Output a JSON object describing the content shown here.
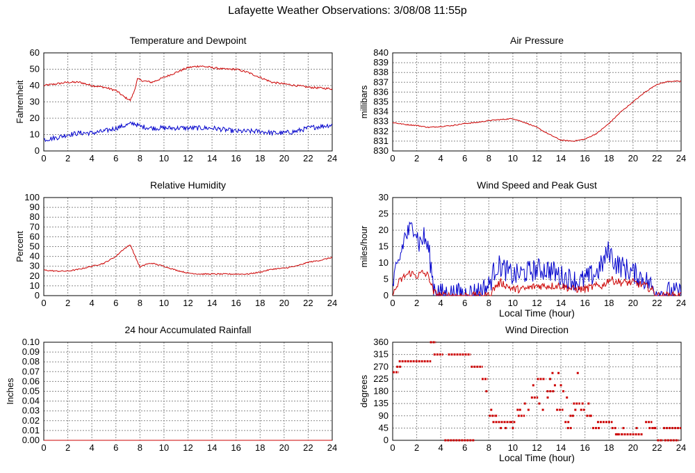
{
  "title": "Lafayette Weather Observations: 3/08/08 11:55p",
  "colors": {
    "red": "#cc0000",
    "blue": "#0000cc",
    "grid": "#888888",
    "axis": "#000000"
  },
  "chart_data": [
    {
      "type": "line",
      "title": "Temperature and Dewpoint",
      "ylabel": "Fahrenheit",
      "xlabel": "",
      "xlim": [
        0,
        24
      ],
      "ylim": [
        0,
        60
      ],
      "xticks": [
        0,
        2,
        4,
        6,
        8,
        10,
        12,
        14,
        16,
        18,
        20,
        22,
        24
      ],
      "yticks": [
        0,
        10,
        20,
        30,
        40,
        50,
        60
      ],
      "grid": true,
      "series": [
        {
          "color": "red",
          "noise": 0.6,
          "x": [
            0,
            1,
            2,
            3,
            4,
            5,
            6,
            6.7,
            7.2,
            7.5,
            7.8,
            8.2,
            9,
            10,
            11,
            12,
            13,
            14,
            15,
            16,
            17,
            18,
            19,
            20,
            21,
            22,
            23,
            24
          ],
          "y": [
            40,
            41,
            42,
            42,
            40,
            39,
            37,
            33,
            31,
            36,
            44,
            43,
            42,
            45,
            48,
            51,
            52,
            51,
            50,
            50,
            48,
            45,
            42,
            41,
            40,
            39,
            38.5,
            38
          ]
        },
        {
          "color": "blue",
          "noise": 1.5,
          "x": [
            0,
            1,
            2,
            3,
            4,
            5,
            6,
            7,
            7.5,
            8,
            9,
            10,
            11,
            12,
            13,
            14,
            15,
            16,
            17,
            18,
            19,
            20,
            21,
            22,
            23,
            24
          ],
          "y": [
            7,
            8,
            10,
            11,
            11,
            12,
            14,
            16,
            17,
            15,
            14,
            14,
            14,
            14,
            14,
            14,
            13,
            12,
            12,
            12,
            11,
            11,
            12,
            14,
            15,
            16
          ]
        }
      ]
    },
    {
      "type": "line",
      "title": "Air Pressure",
      "ylabel": "millibars",
      "xlabel": "",
      "xlim": [
        0,
        24
      ],
      "ylim": [
        830,
        840
      ],
      "xticks": [
        0,
        2,
        4,
        6,
        8,
        10,
        12,
        14,
        16,
        18,
        20,
        22,
        24
      ],
      "yticks": [
        830,
        831,
        832,
        833,
        834,
        835,
        836,
        837,
        838,
        839,
        840
      ],
      "grid": true,
      "series": [
        {
          "color": "red",
          "noise": 0.05,
          "x": [
            0,
            1,
            2,
            3,
            4,
            5,
            6,
            7,
            8,
            9,
            10,
            11,
            12,
            13,
            14,
            15,
            16,
            17,
            18,
            19,
            20,
            21,
            22,
            23,
            24
          ],
          "y": [
            832.9,
            832.7,
            832.6,
            832.4,
            832.5,
            832.6,
            832.8,
            832.9,
            833.1,
            833.2,
            833.3,
            832.9,
            832.4,
            831.7,
            831.1,
            831.0,
            831.2,
            831.8,
            832.8,
            834.0,
            835.0,
            836.0,
            836.8,
            837.1,
            837.1
          ]
        }
      ]
    },
    {
      "type": "line",
      "title": "Relative Humidity",
      "ylabel": "Percent",
      "xlabel": "",
      "xlim": [
        0,
        24
      ],
      "ylim": [
        0,
        100
      ],
      "xticks": [
        0,
        2,
        4,
        6,
        8,
        10,
        12,
        14,
        16,
        18,
        20,
        22,
        24
      ],
      "yticks": [
        0,
        10,
        20,
        30,
        40,
        50,
        60,
        70,
        80,
        90,
        100
      ],
      "grid": true,
      "series": [
        {
          "color": "red",
          "noise": 0.6,
          "x": [
            0,
            1,
            2,
            3,
            4,
            5,
            6,
            6.5,
            7.2,
            7.6,
            8,
            8.5,
            9,
            10,
            11,
            12,
            13,
            14,
            15,
            16,
            17,
            18,
            19,
            20,
            21,
            22,
            23,
            24
          ],
          "y": [
            26,
            25,
            25,
            27,
            30,
            33,
            40,
            46,
            52,
            40,
            29,
            32,
            33,
            30,
            26,
            23,
            22,
            22,
            22,
            22,
            22,
            24,
            27,
            28,
            30,
            34,
            36,
            39
          ]
        }
      ]
    },
    {
      "type": "line",
      "title": "Wind Speed and Peak Gust",
      "ylabel": "miles/hour",
      "xlabel": "Local Time (hour)",
      "xlim": [
        0,
        24
      ],
      "ylim": [
        0,
        30
      ],
      "xticks": [
        0,
        2,
        4,
        6,
        8,
        10,
        12,
        14,
        16,
        18,
        20,
        22,
        24
      ],
      "yticks": [
        0,
        5,
        10,
        15,
        20,
        25,
        30
      ],
      "grid": true,
      "series": [
        {
          "color": "blue",
          "noise": 3.5,
          "x": [
            0,
            0.5,
            1,
            1.5,
            1.8,
            2.2,
            2.6,
            3,
            3.4,
            4,
            5,
            6,
            7,
            7.5,
            8,
            8.6,
            9,
            10,
            11,
            12,
            13,
            14,
            15,
            15.5,
            16,
            17,
            17.5,
            18,
            18.5,
            19,
            20,
            21,
            21.5,
            22,
            22.5,
            23,
            24
          ],
          "y": [
            3,
            10,
            18,
            20,
            22,
            16,
            18,
            14,
            3,
            0.5,
            0.5,
            0.5,
            1,
            2,
            3,
            9,
            9,
            6,
            7,
            8,
            8,
            6,
            5,
            4,
            5,
            7,
            10,
            14,
            10,
            9,
            7,
            5,
            3,
            1,
            0.5,
            1,
            0.5
          ]
        },
        {
          "color": "red",
          "noise": 1.2,
          "x": [
            0,
            0.5,
            1,
            1.5,
            2,
            2.5,
            3,
            3.4,
            4,
            5,
            6,
            7,
            8,
            8.6,
            9,
            10,
            11,
            12,
            13,
            14,
            15,
            16,
            17,
            17.5,
            18,
            19,
            20,
            21,
            21.5,
            22,
            24
          ],
          "y": [
            0,
            4,
            6,
            7,
            6,
            7,
            6,
            1,
            0,
            0,
            0,
            0,
            0,
            3,
            4,
            2,
            2,
            3,
            3,
            3,
            2,
            2,
            3,
            3,
            5,
            4,
            4,
            3,
            2,
            0,
            0
          ]
        }
      ]
    },
    {
      "type": "line",
      "title": "24 hour Accumulated Rainfall",
      "ylabel": "Inches",
      "xlabel": "",
      "xlim": [
        0,
        24
      ],
      "ylim": [
        0,
        0.1
      ],
      "xticks": [
        0,
        2,
        4,
        6,
        8,
        10,
        12,
        14,
        16,
        18,
        20,
        22,
        24
      ],
      "yticks": [
        "0.00",
        "0.01",
        "0.02",
        "0.03",
        "0.04",
        "0.05",
        "0.06",
        "0.07",
        "0.08",
        "0.09",
        "0.10"
      ],
      "grid": true,
      "series": [
        {
          "color": "red",
          "noise": 0,
          "x": [
            0,
            24
          ],
          "y": [
            0,
            0
          ]
        }
      ]
    },
    {
      "type": "scatter",
      "title": "Wind Direction",
      "ylabel": "degrees",
      "xlabel": "Local Time (hour)",
      "xlim": [
        0,
        24
      ],
      "ylim": [
        0,
        360
      ],
      "xticks": [
        0,
        2,
        4,
        6,
        8,
        10,
        12,
        14,
        16,
        18,
        20,
        22,
        24
      ],
      "yticks": [
        0,
        45,
        90,
        135,
        180,
        225,
        270,
        315,
        360
      ],
      "grid": true,
      "series": [
        {
          "color": "red",
          "segments": [
            [
              0,
              0.5,
              250
            ],
            [
              0.3,
              0.7,
              270
            ],
            [
              0.5,
              3.2,
              290
            ],
            [
              3.1,
              3.6,
              360
            ],
            [
              3.4,
              4.2,
              315
            ],
            [
              4.3,
              6.8,
              0
            ],
            [
              4.6,
              6.5,
              315
            ],
            [
              6.5,
              7.5,
              270
            ],
            [
              7.4,
              7.9,
              225
            ],
            [
              8.0,
              8.5,
              90
            ],
            [
              8.3,
              9.8,
              67
            ],
            [
              9.8,
              10.2,
              67
            ],
            [
              10.4,
              11.0,
              90
            ],
            [
              11.5,
              12.1,
              157
            ],
            [
              12.0,
              12.7,
              225
            ],
            [
              12.8,
              13.5,
              180
            ],
            [
              13.6,
              14.2,
              112
            ],
            [
              14.3,
              14.7,
              67
            ],
            [
              14.5,
              14.9,
              45
            ],
            [
              15.0,
              15.6,
              135
            ],
            [
              15.6,
              16.0,
              112
            ],
            [
              16.1,
              16.5,
              90
            ],
            [
              16.6,
              17.3,
              45
            ],
            [
              17.0,
              18.3,
              67
            ],
            [
              18.2,
              18.6,
              45
            ],
            [
              18.5,
              19.0,
              22
            ],
            [
              19.0,
              20.8,
              22
            ],
            [
              21.0,
              21.6,
              67
            ],
            [
              21.3,
              22.0,
              45
            ],
            [
              22.0,
              22.5,
              0
            ],
            [
              22.5,
              24.0,
              45
            ],
            [
              22.6,
              23.8,
              0
            ]
          ],
          "points": [
            [
              7.8,
              180
            ],
            [
              8.2,
              112
            ],
            [
              8.6,
              90
            ],
            [
              9.0,
              45
            ],
            [
              9.4,
              45
            ],
            [
              10.0,
              45
            ],
            [
              10.4,
              112
            ],
            [
              10.6,
              112
            ],
            [
              11.0,
              135
            ],
            [
              11.3,
              112
            ],
            [
              11.7,
              202
            ],
            [
              12.2,
              135
            ],
            [
              12.5,
              112
            ],
            [
              12.9,
              157
            ],
            [
              13.1,
              225
            ],
            [
              13.3,
              247
            ],
            [
              13.5,
              202
            ],
            [
              13.8,
              247
            ],
            [
              14.0,
              202
            ],
            [
              14.2,
              180
            ],
            [
              14.5,
              157
            ],
            [
              14.8,
              90
            ],
            [
              15.0,
              90
            ],
            [
              15.2,
              112
            ],
            [
              15.4,
              247
            ],
            [
              15.8,
              135
            ],
            [
              16.3,
              135
            ],
            [
              16.5,
              90
            ],
            [
              18.7,
              22
            ],
            [
              19.2,
              45
            ],
            [
              20.3,
              45
            ],
            [
              21.8,
              45
            ]
          ]
        }
      ]
    }
  ]
}
